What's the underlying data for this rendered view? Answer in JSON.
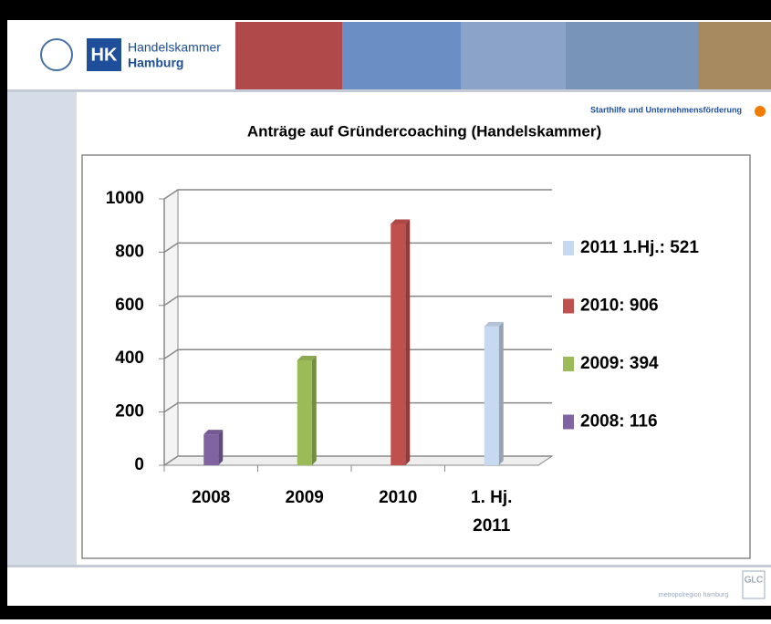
{
  "header": {
    "logo_short": "HK",
    "logo_line1": "Handelskammer",
    "logo_line2": "Hamburg",
    "section": "Starthilfe und Unternehmensförderung"
  },
  "footer": {
    "region": "metropolregion hamburg",
    "badge": "GLC"
  },
  "chart_data": {
    "type": "bar",
    "title": "Anträge auf Gründercoaching (Handelskammer)",
    "categories": [
      "2008",
      "2009",
      "2010",
      "1. Hj.\n2011"
    ],
    "values": [
      116,
      394,
      906,
      521
    ],
    "colors": [
      "#8064a2",
      "#9bbb59",
      "#c0504d",
      "#c6d9f1"
    ],
    "ylim": [
      0,
      1000
    ],
    "yticks": [
      0,
      200,
      400,
      600,
      800,
      1000
    ],
    "grid": true,
    "legend": [
      {
        "label": "2011 1.Hj.: 521",
        "color": "#c6d9f1"
      },
      {
        "label": "2010: 906",
        "color": "#c0504d"
      },
      {
        "label": "2009: 394",
        "color": "#9bbb59"
      },
      {
        "label": "2008: 116",
        "color": "#8064a2"
      }
    ]
  }
}
